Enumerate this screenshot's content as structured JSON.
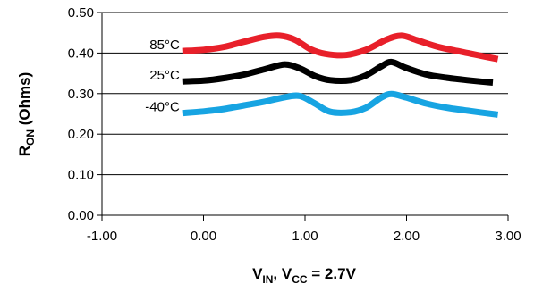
{
  "chart_data": {
    "type": "line",
    "xlabel": {
      "main": "V",
      "sub1": "IN",
      "mid": ", V",
      "sub2": "CC",
      "tail": " = 2.7V"
    },
    "ylabel": {
      "main": "R",
      "sub": "ON",
      "tail": " (Ohms)"
    },
    "xlim": [
      -1.0,
      3.0
    ],
    "ylim": [
      0.0,
      0.5
    ],
    "x_ticks": [
      -1.0,
      0.0,
      1.0,
      2.0,
      3.0
    ],
    "x_tick_labels": [
      "-1.00",
      "0.00",
      "1.00",
      "2.00",
      "3.00"
    ],
    "y_ticks": [
      0.0,
      0.1,
      0.2,
      0.3,
      0.4,
      0.5
    ],
    "y_tick_labels": [
      "0.00",
      "0.10",
      "0.20",
      "0.30",
      "0.40",
      "0.50"
    ],
    "grid": "horizontal",
    "series": [
      {
        "name": "85°C",
        "color": "#e8202a",
        "points": [
          [
            -0.2,
            0.405
          ],
          [
            0.0,
            0.408
          ],
          [
            0.2,
            0.415
          ],
          [
            0.4,
            0.428
          ],
          [
            0.6,
            0.44
          ],
          [
            0.75,
            0.443
          ],
          [
            0.9,
            0.433
          ],
          [
            1.05,
            0.41
          ],
          [
            1.2,
            0.398
          ],
          [
            1.4,
            0.395
          ],
          [
            1.6,
            0.408
          ],
          [
            1.8,
            0.433
          ],
          [
            1.95,
            0.443
          ],
          [
            2.1,
            0.432
          ],
          [
            2.3,
            0.416
          ],
          [
            2.5,
            0.405
          ],
          [
            2.7,
            0.395
          ],
          [
            2.9,
            0.385
          ]
        ]
      },
      {
        "name": "25°C",
        "color": "#000000",
        "points": [
          [
            -0.2,
            0.33
          ],
          [
            0.0,
            0.332
          ],
          [
            0.2,
            0.338
          ],
          [
            0.4,
            0.347
          ],
          [
            0.6,
            0.36
          ],
          [
            0.8,
            0.372
          ],
          [
            0.95,
            0.362
          ],
          [
            1.1,
            0.343
          ],
          [
            1.25,
            0.333
          ],
          [
            1.45,
            0.333
          ],
          [
            1.6,
            0.345
          ],
          [
            1.75,
            0.367
          ],
          [
            1.85,
            0.378
          ],
          [
            2.0,
            0.363
          ],
          [
            2.2,
            0.347
          ],
          [
            2.4,
            0.339
          ],
          [
            2.6,
            0.333
          ],
          [
            2.85,
            0.327
          ]
        ]
      },
      {
        "name": "-40°C",
        "color": "#17a4e2",
        "points": [
          [
            -0.2,
            0.252
          ],
          [
            0.0,
            0.256
          ],
          [
            0.2,
            0.262
          ],
          [
            0.4,
            0.271
          ],
          [
            0.6,
            0.28
          ],
          [
            0.8,
            0.291
          ],
          [
            0.95,
            0.294
          ],
          [
            1.1,
            0.275
          ],
          [
            1.25,
            0.255
          ],
          [
            1.45,
            0.254
          ],
          [
            1.6,
            0.265
          ],
          [
            1.75,
            0.29
          ],
          [
            1.85,
            0.299
          ],
          [
            2.0,
            0.29
          ],
          [
            2.2,
            0.275
          ],
          [
            2.4,
            0.265
          ],
          [
            2.6,
            0.258
          ],
          [
            2.9,
            0.248
          ]
        ]
      }
    ]
  }
}
